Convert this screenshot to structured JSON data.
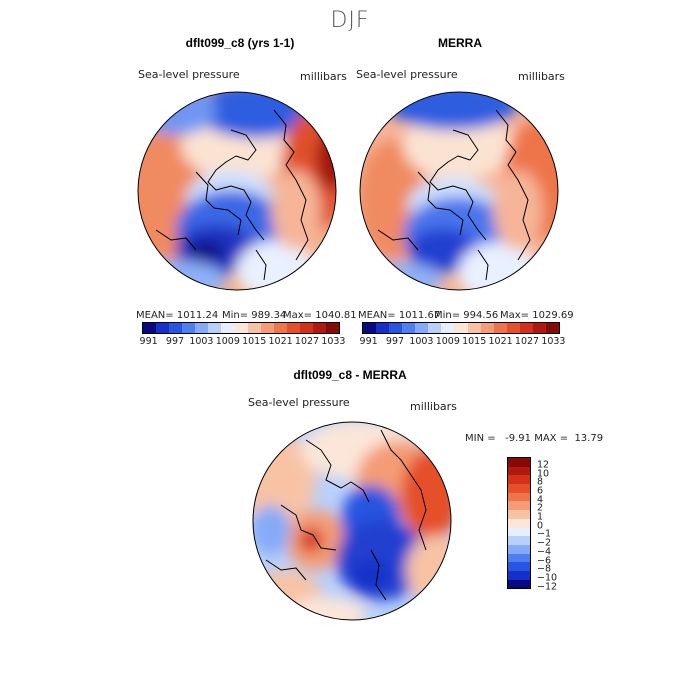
{
  "season": "DJF",
  "panels": [
    {
      "title": "dflt099_c8 (yrs 1-1)",
      "variable": "Sea-level pressure",
      "units": "millibars",
      "mean": "MEAN= 1011.24",
      "min": "Min= 989.34",
      "max": "Max= 1040.81"
    },
    {
      "title": "MERRA",
      "variable": "Sea-level pressure",
      "units": "millibars",
      "mean": "MEAN= 1011.67",
      "min": "Min= 994.56",
      "max": "Max= 1029.69"
    },
    {
      "title": "dflt099_c8 - MERRA",
      "variable": "Sea-level pressure",
      "units": "millibars",
      "minmax": "MIN =   -9.91 MAX =  13.79"
    }
  ],
  "colorbar_levels": [
    "991",
    "997",
    "1003",
    "1009",
    "1015",
    "1021",
    "1027",
    "1033"
  ],
  "colorbar_colors": [
    "#0a0a80",
    "#1530c8",
    "#2855e0",
    "#4f7ef0",
    "#85aaf7",
    "#b9d0fb",
    "#e6efff",
    "#fbe6d9",
    "#f8c3a5",
    "#f49c75",
    "#ee7549",
    "#e5502a",
    "#d3311a",
    "#b01810",
    "#850a08"
  ],
  "diff_levels": [
    "12",
    "10",
    "8",
    "6",
    "4",
    "2",
    "1",
    "0",
    "−1",
    "−2",
    "−4",
    "−6",
    "−8",
    "−10",
    "−12"
  ],
  "diff_colors": [
    "#850a08",
    "#b01810",
    "#d3311a",
    "#e5502a",
    "#ee7549",
    "#f49c75",
    "#f8c3a5",
    "#fbe6d9",
    "#e6efff",
    "#b9d0fb",
    "#85aaf7",
    "#4f7ef0",
    "#2855e0",
    "#1530c8",
    "#0a0a80"
  ]
}
